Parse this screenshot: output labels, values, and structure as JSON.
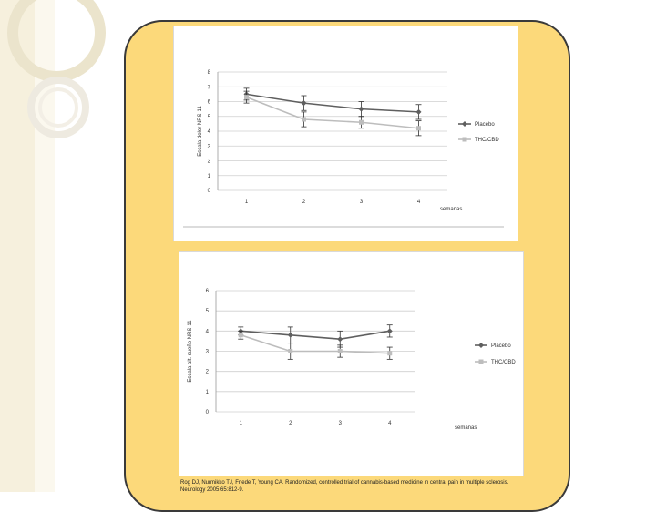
{
  "slide": {
    "citation": "Rog DJ, Nurmikko TJ, Friede T, Young CA. Randomized, controlled trial of cannabis-based medicine in central pain in multiple sclerosis. Neurology 2005;65:812-9."
  },
  "colors": {
    "card": "#fcd97a",
    "placebo": "#5f5f5f",
    "thc": "#bdbdbd"
  },
  "chart_data": [
    {
      "type": "line",
      "ylabel": "Escala dolor NRS-11",
      "xlabel": "semanas",
      "x": [
        1,
        2,
        3,
        4
      ],
      "ylim": [
        0,
        8
      ],
      "yticks": [
        0,
        1,
        2,
        3,
        4,
        5,
        6,
        7,
        8
      ],
      "grid": true,
      "legend_position": "right",
      "series": [
        {
          "name": "Placebo",
          "values": [
            6.5,
            5.9,
            5.5,
            5.3
          ],
          "errors": [
            0.4,
            0.5,
            0.5,
            0.5
          ],
          "marker": "diamond"
        },
        {
          "name": "THC/CBD",
          "values": [
            6.3,
            4.8,
            4.6,
            4.2
          ],
          "errors": [
            0.4,
            0.5,
            0.4,
            0.5
          ],
          "marker": "square"
        }
      ]
    },
    {
      "type": "line",
      "ylabel": "Escala alt. sueño NRS-11",
      "xlabel": "semanas",
      "x": [
        1,
        2,
        3,
        4
      ],
      "ylim": [
        0,
        6
      ],
      "yticks": [
        0,
        1,
        2,
        3,
        4,
        5,
        6
      ],
      "grid": true,
      "legend_position": "right",
      "series": [
        {
          "name": "Placebo",
          "values": [
            4.0,
            3.8,
            3.6,
            4.0
          ],
          "errors": [
            0.2,
            0.4,
            0.4,
            0.3
          ],
          "marker": "diamond"
        },
        {
          "name": "THC/CBD",
          "values": [
            3.8,
            3.0,
            3.0,
            2.9
          ],
          "errors": [
            0.2,
            0.4,
            0.3,
            0.3
          ],
          "marker": "square"
        }
      ]
    }
  ]
}
